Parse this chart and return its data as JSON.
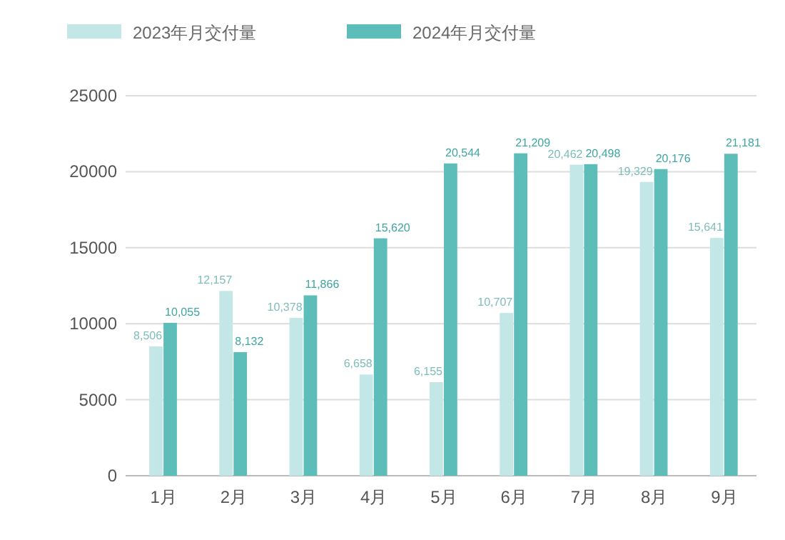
{
  "chart_data": {
    "type": "bar",
    "categories": [
      "1月",
      "2月",
      "3月",
      "4月",
      "5月",
      "6月",
      "7月",
      "8月",
      "9月"
    ],
    "series": [
      {
        "name": "2023年月交付量",
        "color": "#c3e7e6",
        "values": [
          8506,
          12157,
          10378,
          6658,
          6155,
          10707,
          20462,
          19329,
          15641
        ],
        "value_labels": [
          "8,506",
          "12,157",
          "10,378",
          "6,658",
          "6,155",
          "10,707",
          "20,462",
          "19,329",
          "15,641"
        ]
      },
      {
        "name": "2024年月交付量",
        "color": "#5dbdb9",
        "values": [
          10055,
          8132,
          11866,
          15620,
          20544,
          21209,
          20498,
          20176,
          21181
        ],
        "value_labels": [
          "10,055",
          "8,132",
          "11,866",
          "15,620",
          "20,544",
          "21,209",
          "20,498",
          "20,176",
          "21,181"
        ]
      }
    ],
    "ylim": [
      0,
      25000
    ],
    "yticks": [
      0,
      5000,
      10000,
      15000,
      20000,
      25000
    ],
    "grid": "y",
    "legend": "top"
  }
}
